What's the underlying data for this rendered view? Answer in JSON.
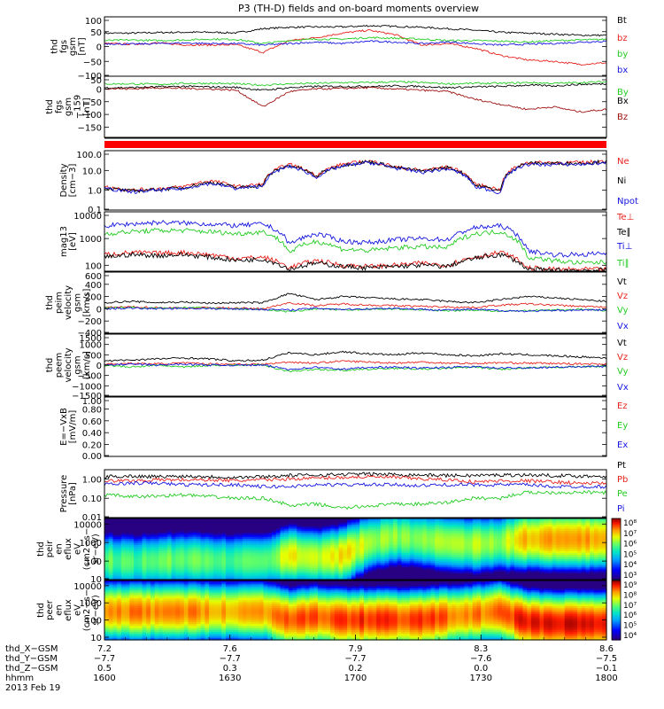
{
  "title": "P3 (TH-D) fields and on-board moments overview",
  "chart_data": [
    {
      "type": "line",
      "ylabel": [
        "thd",
        "fgs",
        "gsm",
        "[nT]"
      ],
      "ylim": [
        -100,
        100
      ],
      "yticks": [
        "100",
        "50",
        "0",
        "−50",
        "−100"
      ],
      "yscale": "linear",
      "series": [
        {
          "name": "Bt",
          "color": "#000000",
          "values": [
            45,
            45,
            47,
            48,
            48,
            46,
            60,
            65,
            66,
            66,
            70,
            68,
            65,
            60,
            55,
            48,
            45,
            42,
            38,
            38
          ]
        },
        {
          "name": "bz",
          "color": "#e8211c",
          "values": [
            10,
            8,
            12,
            6,
            5,
            6,
            -20,
            20,
            30,
            45,
            55,
            40,
            5,
            10,
            -5,
            -30,
            -45,
            -50,
            -60,
            -55
          ]
        },
        {
          "name": "by",
          "color": "#22cc22",
          "values": [
            20,
            22,
            20,
            22,
            25,
            24,
            10,
            20,
            25,
            25,
            30,
            28,
            25,
            20,
            20,
            18,
            15,
            20,
            22,
            24
          ]
        },
        {
          "name": "bx",
          "color": "#1515e0",
          "values": [
            10,
            8,
            10,
            12,
            10,
            10,
            5,
            10,
            15,
            10,
            18,
            15,
            10,
            15,
            10,
            5,
            8,
            10,
            15,
            18
          ]
        }
      ]
    },
    {
      "type": "line",
      "ylabel": [
        "thd",
        "fgs",
        "gsm",
        "−159",
        "[nT]"
      ],
      "ylim": [
        -190,
        50
      ],
      "yticks": [
        "50",
        "0",
        "−50",
        "−100",
        "−150"
      ],
      "yscale": "linear",
      "series": [
        {
          "name": "By",
          "color": "#22cc22",
          "values": [
            20,
            20,
            18,
            22,
            22,
            20,
            15,
            20,
            22,
            25,
            25,
            28,
            25,
            20,
            22,
            22,
            25,
            22,
            25,
            28
          ]
        },
        {
          "name": "Bx",
          "color": "#000000",
          "values": [
            5,
            5,
            8,
            10,
            8,
            6,
            -5,
            5,
            10,
            10,
            10,
            12,
            10,
            5,
            8,
            10,
            15,
            12,
            18,
            20
          ]
        },
        {
          "name": "Bz",
          "color": "#a01010",
          "values": [
            2,
            0,
            5,
            2,
            0,
            -5,
            -70,
            -10,
            0,
            2,
            5,
            0,
            -5,
            -10,
            -40,
            -60,
            -80,
            -70,
            -90,
            -80
          ]
        }
      ]
    },
    {
      "type": "line",
      "ylabel": [
        "Density",
        "[cm−3]"
      ],
      "ylim": [
        0.1,
        100
      ],
      "yticks": [
        "100.0",
        "10.0",
        "1.0",
        "0.1"
      ],
      "yscale": "log",
      "series": [
        {
          "name": "Ne",
          "color": "#e8211c",
          "values": [
            1.5,
            1.0,
            1.2,
            1.5,
            3,
            1.5,
            2,
            20,
            5,
            20,
            30,
            15,
            10,
            15,
            2,
            1,
            25,
            25,
            25,
            30
          ]
        },
        {
          "name": "Ni",
          "color": "#000000",
          "values": [
            1.3,
            0.9,
            1.1,
            1.3,
            2.5,
            1.3,
            1.8,
            18,
            4.5,
            18,
            28,
            14,
            9,
            14,
            1.8,
            0.9,
            23,
            23,
            23,
            28
          ]
        },
        {
          "name": "Npot",
          "color": "#1515e0",
          "values": [
            1.2,
            0.8,
            1.0,
            1.2,
            2.2,
            1.2,
            1.6,
            16,
            4,
            16,
            25,
            13,
            8,
            12,
            1.5,
            0.7,
            20,
            20,
            20,
            25
          ]
        }
      ]
    },
    {
      "type": "line",
      "ylabel": [
        "mag13",
        "[eV]"
      ],
      "ylim": [
        60,
        10000
      ],
      "yticks": [
        "10000",
        "1000",
        "100"
      ],
      "yscale": "log",
      "series": [
        {
          "name": "Te⊥",
          "color": "#e8211c",
          "values": [
            250,
            300,
            280,
            300,
            250,
            180,
            200,
            80,
            150,
            100,
            90,
            100,
            120,
            100,
            200,
            300,
            80,
            70,
            70,
            70
          ]
        },
        {
          "name": "Te∥",
          "color": "#000000",
          "values": [
            200,
            250,
            230,
            250,
            200,
            150,
            170,
            70,
            120,
            90,
            80,
            90,
            100,
            90,
            180,
            250,
            70,
            65,
            65,
            65
          ]
        },
        {
          "name": "Ti⊥",
          "color": "#1515e0",
          "values": [
            3000,
            3500,
            4000,
            3800,
            3500,
            3000,
            3500,
            600,
            1500,
            800,
            700,
            900,
            1000,
            900,
            2500,
            3000,
            350,
            250,
            250,
            280
          ]
        },
        {
          "name": "Ti∥",
          "color": "#22cc22",
          "values": [
            1500,
            1800,
            2000,
            2000,
            1800,
            1500,
            1800,
            300,
            800,
            400,
            350,
            450,
            500,
            450,
            1500,
            1800,
            200,
            150,
            120,
            130
          ]
        }
      ]
    },
    {
      "type": "line",
      "ylabel": [
        "thd",
        "peim",
        "velocity",
        "gsm",
        "[km/s]"
      ],
      "ylim": [
        -400,
        600
      ],
      "yticks": [
        "600",
        "400",
        "200",
        "0",
        "−200",
        "−400"
      ],
      "yscale": "linear",
      "series": [
        {
          "name": "Vt",
          "color": "#000000",
          "values": [
            100,
            120,
            100,
            110,
            90,
            100,
            100,
            250,
            150,
            200,
            180,
            160,
            150,
            120,
            100,
            150,
            200,
            180,
            150,
            120
          ]
        },
        {
          "name": "Vz",
          "color": "#e8211c",
          "values": [
            20,
            30,
            20,
            10,
            20,
            10,
            0,
            100,
            50,
            80,
            60,
            50,
            40,
            30,
            20,
            60,
            80,
            60,
            40,
            30
          ]
        },
        {
          "name": "Vy",
          "color": "#22cc22",
          "values": [
            10,
            20,
            10,
            20,
            10,
            0,
            -10,
            -50,
            0,
            -20,
            -10,
            0,
            -20,
            -30,
            -20,
            -40,
            -30,
            -20,
            -10,
            -30
          ]
        },
        {
          "name": "Vx",
          "color": "#1515e0",
          "values": [
            0,
            10,
            0,
            10,
            0,
            0,
            -10,
            -20,
            10,
            -10,
            0,
            10,
            -10,
            -20,
            -10,
            -30,
            -40,
            -30,
            -20,
            -20
          ]
        }
      ]
    },
    {
      "type": "line",
      "ylabel": [
        "thd",
        "peem",
        "velocity",
        "gsm",
        "[km/s]"
      ],
      "ylim": [
        -1500,
        1500
      ],
      "yticks": [
        "1500",
        "1000",
        "500",
        "0",
        "−500",
        "−1000",
        "−1500"
      ],
      "yscale": "linear",
      "series": [
        {
          "name": "Vt",
          "color": "#000000",
          "values": [
            200,
            250,
            300,
            350,
            300,
            200,
            250,
            600,
            500,
            650,
            550,
            500,
            600,
            500,
            450,
            550,
            500,
            450,
            400,
            350
          ]
        },
        {
          "name": "Vz",
          "color": "#e8211c",
          "values": [
            50,
            80,
            60,
            100,
            60,
            50,
            40,
            150,
            100,
            200,
            150,
            100,
            150,
            100,
            80,
            120,
            100,
            80,
            60,
            50
          ]
        },
        {
          "name": "Vy",
          "color": "#22cc22",
          "values": [
            0,
            -100,
            0,
            -100,
            0,
            0,
            0,
            -300,
            -200,
            -250,
            -200,
            -150,
            -200,
            -150,
            -100,
            -200,
            -150,
            -100,
            -80,
            -50
          ]
        },
        {
          "name": "Vx",
          "color": "#1515e0",
          "values": [
            0,
            50,
            0,
            50,
            0,
            0,
            0,
            -200,
            -100,
            -200,
            -100,
            -100,
            -150,
            -100,
            -80,
            -150,
            -120,
            -100,
            -80,
            -60
          ]
        }
      ]
    },
    {
      "type": "line",
      "ylabel": [
        "E=−VxB",
        "[mV/m]"
      ],
      "ylim": [
        0,
        1
      ],
      "yticks": [
        "1.00",
        "0.80",
        "0.60",
        "0.40",
        "0.20",
        "0.00"
      ],
      "yscale": "linear",
      "series": [
        {
          "name": "Ez",
          "color": "#e8211c",
          "values": []
        },
        {
          "name": "Ey",
          "color": "#22cc22",
          "values": []
        },
        {
          "name": "Ex",
          "color": "#1515e0",
          "values": []
        }
      ]
    },
    {
      "type": "line",
      "ylabel": [
        "Pressure",
        "[nPa]"
      ],
      "ylim": [
        0.01,
        3
      ],
      "yticks": [
        "1.00",
        "0.10",
        "0.01"
      ],
      "yscale": "log",
      "series": [
        {
          "name": "Pt",
          "color": "#000000",
          "values": [
            1.3,
            1.4,
            1.3,
            1.4,
            1.3,
            1.2,
            1.3,
            1.5,
            1.6,
            1.7,
            1.8,
            1.7,
            1.6,
            1.5,
            1.5,
            1.6,
            1.6,
            1.5,
            1.4,
            1.4
          ]
        },
        {
          "name": "Pb",
          "color": "#e8211c",
          "values": [
            0.8,
            0.8,
            0.9,
            0.9,
            0.9,
            0.8,
            0.9,
            1.0,
            1.1,
            1.2,
            1.3,
            1.2,
            1.0,
            0.9,
            0.7,
            0.8,
            0.8,
            0.7,
            0.6,
            0.6
          ]
        },
        {
          "name": "Pe",
          "color": "#22cc22",
          "values": [
            0.15,
            0.12,
            0.13,
            0.15,
            0.12,
            0.1,
            0.1,
            0.04,
            0.05,
            0.03,
            0.04,
            0.05,
            0.05,
            0.06,
            0.1,
            0.1,
            0.2,
            0.2,
            0.2,
            0.2
          ]
        },
        {
          "name": "Pi",
          "color": "#1515e0",
          "values": [
            0.5,
            0.6,
            0.6,
            0.5,
            0.5,
            0.5,
            0.4,
            0.4,
            0.5,
            0.5,
            0.5,
            0.5,
            0.45,
            0.5,
            0.5,
            0.5,
            0.5,
            0.4,
            0.4,
            0.4
          ]
        }
      ]
    },
    {
      "type": "heatmap",
      "ylabel": [
        "thd",
        "peir",
        "en",
        "eflux",
        "eV",
        "(cm2−s−",
        "sr−eV)"
      ],
      "ylim": [
        10,
        20000
      ],
      "yticks": [
        "10000",
        "1000",
        "100",
        "10"
      ],
      "yscale": "log",
      "colorbar_ticks": [
        "10⁸",
        "10⁷",
        "10⁶",
        "10⁵",
        "10⁴",
        "10³"
      ],
      "colorbar_range": [
        3,
        8.6
      ],
      "peak_energy": [
        100,
        90,
        100,
        120,
        100,
        100,
        100,
        200,
        150,
        200,
        1000,
        2000,
        1500,
        1000,
        800,
        1000,
        1500,
        1500,
        1500,
        1500
      ],
      "peak_level": [
        6.2,
        6.0,
        6.2,
        6.3,
        6.1,
        6.0,
        6.1,
        7.0,
        6.8,
        7.2,
        6.6,
        6.5,
        6.5,
        6.6,
        6.6,
        6.5,
        7.4,
        7.5,
        7.5,
        7.4
      ]
    },
    {
      "type": "heatmap",
      "ylabel": [
        "thd",
        "peer",
        "en",
        "eflux",
        "eV",
        "(cm2−s−",
        "sr−eV)"
      ],
      "ylim": [
        7,
        20000
      ],
      "yticks": [
        "10000",
        "1000",
        "100",
        "10"
      ],
      "yscale": "log",
      "colorbar_ticks": [
        "10⁹",
        "10⁸",
        "10⁷",
        "10⁶",
        "10⁵",
        "10⁴"
      ],
      "colorbar_range": [
        3.6,
        9.6
      ],
      "peak_energy": [
        300,
        300,
        300,
        300,
        300,
        300,
        300,
        100,
        150,
        100,
        100,
        100,
        100,
        150,
        200,
        300,
        80,
        60,
        60,
        60
      ],
      "peak_level": [
        8.6,
        8.6,
        8.6,
        8.6,
        8.5,
        8.4,
        8.5,
        9.0,
        8.8,
        9.0,
        9.1,
        9.0,
        9.0,
        8.8,
        8.6,
        8.7,
        9.3,
        9.3,
        9.3,
        9.3
      ]
    }
  ],
  "x_axis": {
    "row_labels": [
      "thd_X−GSM",
      "thd_Y−GSM",
      "thd_Z−GSM",
      "hhmm",
      "2013 Feb 19"
    ],
    "ticks": [
      {
        "values": [
          "7.2",
          "−7.7",
          "0.5",
          "1600"
        ]
      },
      {
        "values": [
          "7.6",
          "−7.7",
          "0.3",
          "1630"
        ]
      },
      {
        "values": [
          "7.9",
          "−7.7",
          "0.2",
          "1700"
        ]
      },
      {
        "values": [
          "8.3",
          "−7.6",
          "0.0",
          "1730"
        ]
      },
      {
        "values": [
          "8.6",
          "−7.5",
          "−0.1",
          "1800"
        ]
      }
    ]
  }
}
